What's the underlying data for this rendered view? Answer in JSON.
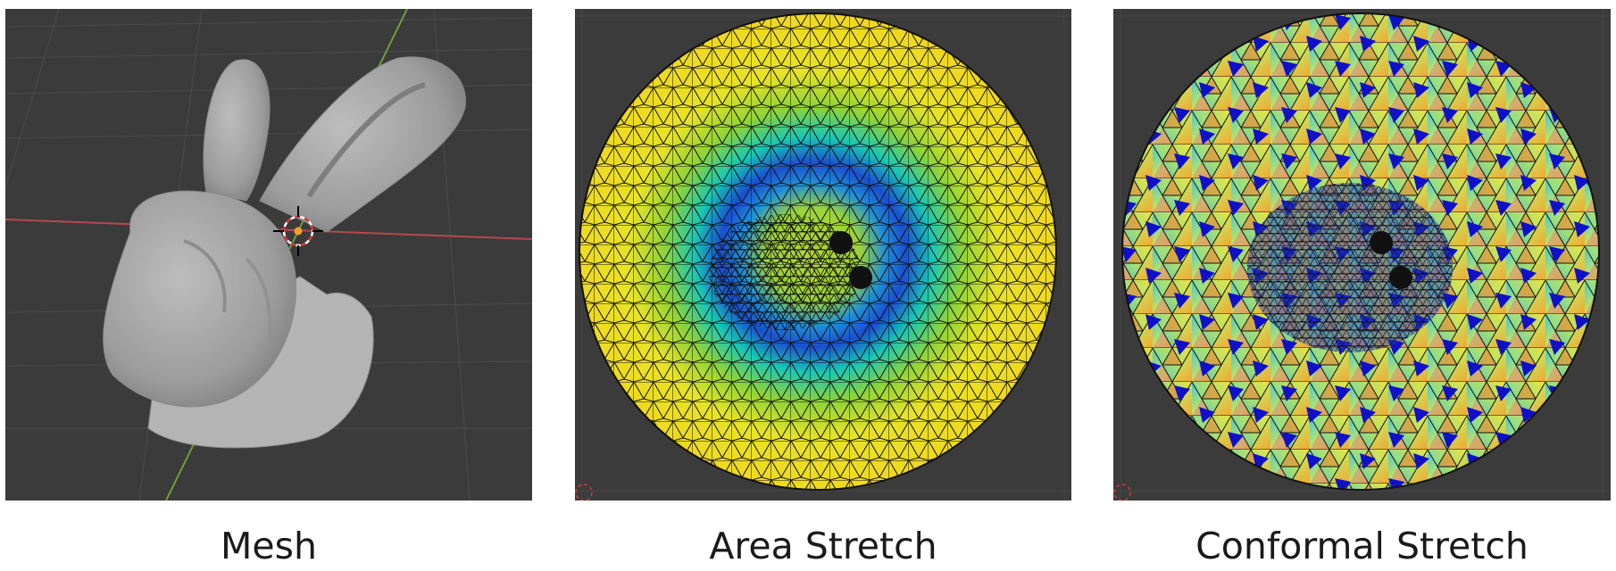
{
  "panels": {
    "mesh": {
      "caption": "Mesh"
    },
    "area_stretch": {
      "caption": "Area Stretch"
    },
    "conformal_stretch": {
      "caption": "Conformal Stretch"
    }
  },
  "colors": {
    "viewport_bg": "#3b3b3b",
    "grid_line": "#4a4a4a",
    "axis_x": "#b5484f",
    "axis_y": "#6e9d3a",
    "mesh_gray": "#a9a9a9",
    "stretch_low": "#1a2bd0",
    "stretch_mid": "#17c7b5",
    "stretch_high": "#f3e21c",
    "wire": "#111111"
  }
}
